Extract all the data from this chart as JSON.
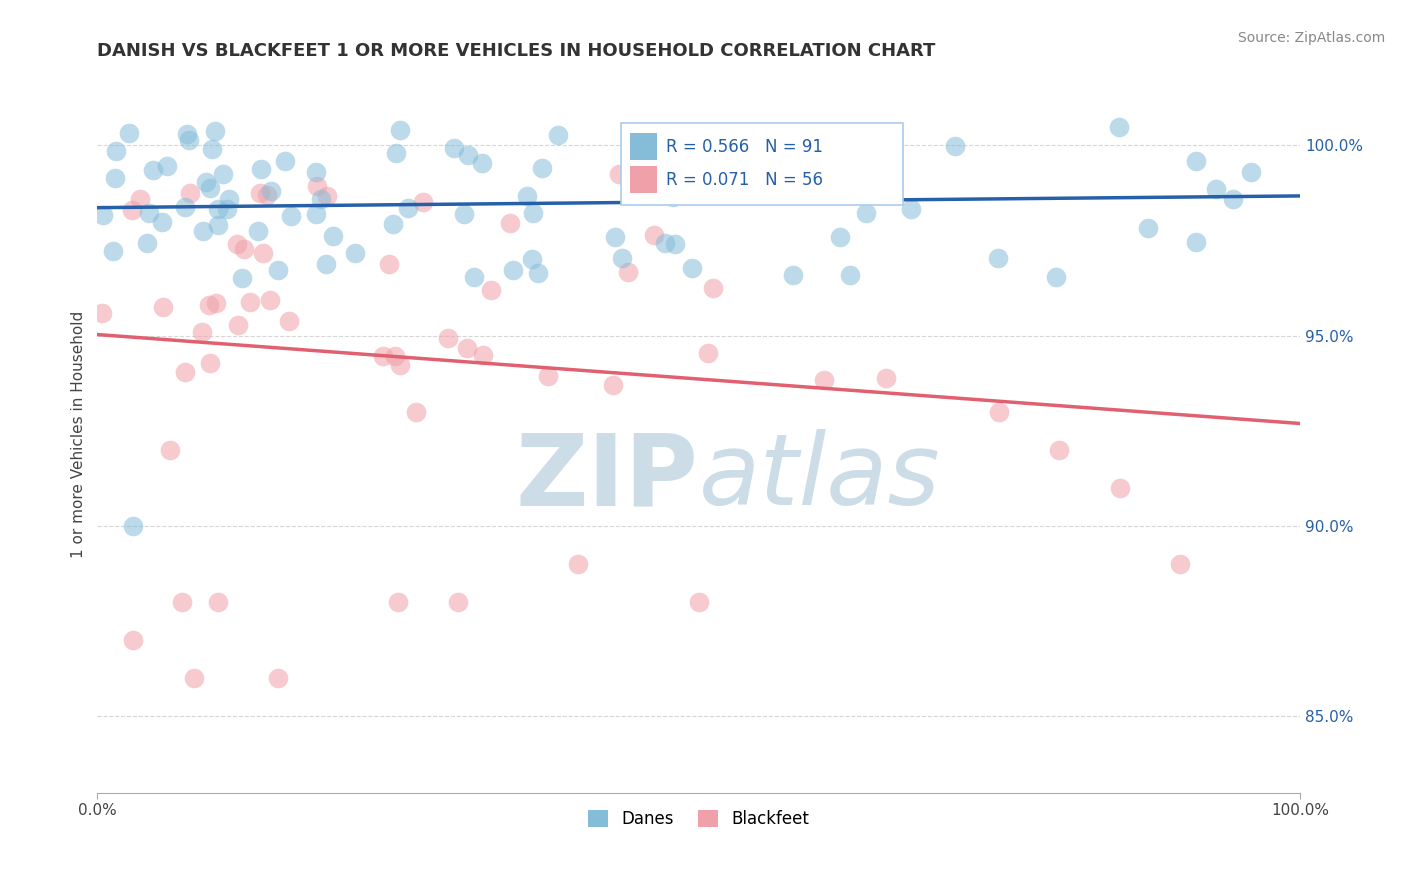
{
  "title": "DANISH VS BLACKFEET 1 OR MORE VEHICLES IN HOUSEHOLD CORRELATION CHART",
  "source": "Source: ZipAtlas.com",
  "ylabel": "1 or more Vehicles in Household",
  "xlim": [
    0,
    100
  ],
  "ylim": [
    83,
    101.8
  ],
  "ytick_positions": [
    85.0,
    90.0,
    95.0,
    100.0
  ],
  "ytick_labels": [
    "85.0%",
    "90.0%",
    "95.0%",
    "100.0%"
  ],
  "xtick_positions": [
    0,
    100
  ],
  "xtick_labels": [
    "0.0%",
    "100.0%"
  ],
  "R_danish": 0.566,
  "N_danish": 91,
  "R_blackfeet": 0.071,
  "N_blackfeet": 56,
  "danish_color": "#85bdd9",
  "blackfeet_color": "#f0a0a8",
  "danish_line_color": "#2660a8",
  "blackfeet_line_color": "#e06070",
  "watermark_zip": "ZIP",
  "watermark_atlas": "atlas",
  "watermark_color": "#ccdde8",
  "legend_R_color": "#2660a8",
  "legend_N_color": "#111111"
}
